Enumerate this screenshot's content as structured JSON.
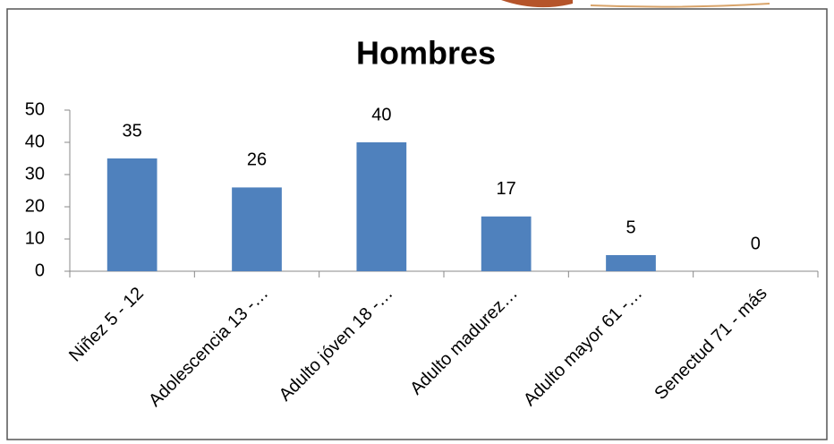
{
  "chart_data": {
    "type": "bar",
    "title": "Hombres",
    "categories": [
      "Niñez 5 - 12",
      "Adolescencia 13 -…",
      "Adulto jóven 18 -…",
      "Adulto madurez…",
      "Adulto mayor 61 -…",
      "Senectud 71 - más"
    ],
    "values": [
      35,
      26,
      40,
      17,
      5,
      0
    ],
    "color": "#4f81bd",
    "ylim": [
      0,
      50
    ],
    "yticks": [
      0,
      10,
      20,
      30,
      40,
      50
    ],
    "grid": false,
    "data_labels": true
  }
}
